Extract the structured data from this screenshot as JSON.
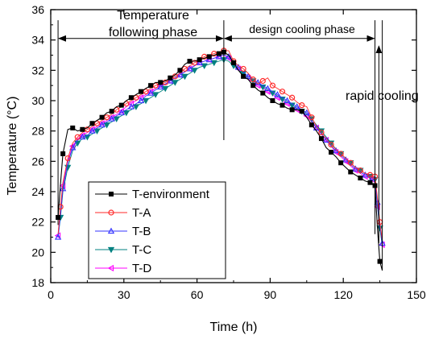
{
  "chart_data": {
    "type": "line",
    "xlabel": "Time (h)",
    "ylabel": "Temperature (°C)",
    "xlim": [
      0,
      150
    ],
    "ylim": [
      18,
      36
    ],
    "xticks": [
      "0",
      "30",
      "60",
      "90",
      "120",
      "150"
    ],
    "yticks": [
      "18",
      "20",
      "22",
      "24",
      "26",
      "28",
      "30",
      "32",
      "34",
      "36"
    ],
    "grid": false,
    "legend_position": "bottom-left",
    "annotations": {
      "phase1_line1": "Temperature",
      "phase1_line2": "following phase",
      "phase2": "design cooling phase",
      "phase3": "rapid cooling"
    },
    "phase_boundaries_x": [
      3,
      71,
      133,
      136
    ],
    "series": [
      {
        "name": "T-environment",
        "color": "#000000",
        "marker": "square",
        "x": [
          3,
          4,
          5,
          7,
          9,
          11,
          13,
          15,
          17,
          19,
          21,
          23,
          25,
          27,
          29,
          31,
          33,
          35,
          37,
          39,
          41,
          43,
          45,
          47,
          49,
          51,
          53,
          55,
          57,
          59,
          61,
          63,
          65,
          67,
          69,
          70,
          71,
          73,
          75,
          77,
          79,
          81,
          83,
          85,
          87,
          89,
          91,
          93,
          95,
          97,
          99,
          101,
          103,
          105,
          107,
          109,
          111,
          113,
          115,
          117,
          119,
          121,
          123,
          125,
          127,
          129,
          131,
          132,
          133,
          134,
          135,
          136
        ],
        "y": [
          22.3,
          24.5,
          26.5,
          28.1,
          28.2,
          28.0,
          28.1,
          28.2,
          28.5,
          28.7,
          28.9,
          29.2,
          29.3,
          29.6,
          29.7,
          30.0,
          30.2,
          30.4,
          30.6,
          30.8,
          31.0,
          31.2,
          31.2,
          31.3,
          31.5,
          31.7,
          32.0,
          32.4,
          32.6,
          32.6,
          32.7,
          32.8,
          32.9,
          33.0,
          33.1,
          33.2,
          33.2,
          33.0,
          32.5,
          32.0,
          31.6,
          31.4,
          31.0,
          30.7,
          30.5,
          30.2,
          30.0,
          29.8,
          29.7,
          29.5,
          29.4,
          29.4,
          29.3,
          28.9,
          28.4,
          28.0,
          27.5,
          26.9,
          26.6,
          26.3,
          25.9,
          25.6,
          25.3,
          25.1,
          24.9,
          24.7,
          24.6,
          24.5,
          24.4,
          21.6,
          19.4,
          18.8
        ]
      },
      {
        "name": "T-A",
        "color": "#ff2a2a",
        "marker": "circle",
        "x": [
          3,
          4,
          5,
          7,
          9,
          11,
          13,
          15,
          17,
          19,
          21,
          23,
          25,
          27,
          29,
          31,
          33,
          35,
          37,
          39,
          41,
          43,
          45,
          47,
          49,
          51,
          53,
          55,
          57,
          59,
          61,
          63,
          65,
          67,
          69,
          71,
          73,
          75,
          77,
          79,
          81,
          83,
          85,
          87,
          89,
          91,
          93,
          95,
          97,
          99,
          101,
          103,
          105,
          107,
          109,
          111,
          113,
          115,
          117,
          119,
          121,
          123,
          125,
          127,
          129,
          131,
          132,
          133,
          134,
          135,
          136
        ],
        "y": [
          21.2,
          23.0,
          24.6,
          26.2,
          27.2,
          27.6,
          27.9,
          28.1,
          28.3,
          28.5,
          28.7,
          28.9,
          29.1,
          29.4,
          29.6,
          29.8,
          30.0,
          30.2,
          30.4,
          30.6,
          30.8,
          31.0,
          31.1,
          31.2,
          31.4,
          31.6,
          31.8,
          32.1,
          32.3,
          32.5,
          32.7,
          32.9,
          33.0,
          33.1,
          33.2,
          33.3,
          33.3,
          32.6,
          32.3,
          32.1,
          31.8,
          31.4,
          31.1,
          31.3,
          31.5,
          31.0,
          30.8,
          30.6,
          30.4,
          30.2,
          29.9,
          29.7,
          29.6,
          28.9,
          28.3,
          27.9,
          27.5,
          27.1,
          26.8,
          26.5,
          26.2,
          25.9,
          25.6,
          25.4,
          25.2,
          25.1,
          25.0,
          25.0,
          23.6,
          22.0,
          20.8
        ]
      },
      {
        "name": "T-B",
        "color": "#3333ff",
        "marker": "triangle-up",
        "x": [
          3,
          4,
          5,
          7,
          9,
          11,
          13,
          15,
          17,
          19,
          21,
          23,
          25,
          27,
          29,
          31,
          33,
          35,
          37,
          39,
          41,
          43,
          45,
          47,
          49,
          51,
          53,
          55,
          57,
          59,
          61,
          63,
          65,
          67,
          69,
          71,
          73,
          75,
          77,
          79,
          81,
          83,
          85,
          87,
          89,
          91,
          93,
          95,
          97,
          99,
          101,
          103,
          105,
          107,
          109,
          111,
          113,
          115,
          117,
          119,
          121,
          123,
          125,
          127,
          129,
          131,
          132,
          133,
          134,
          135,
          136
        ],
        "y": [
          21.0,
          22.5,
          24.2,
          25.9,
          26.9,
          27.4,
          27.6,
          27.7,
          28.0,
          28.2,
          28.4,
          28.6,
          28.8,
          29.0,
          29.2,
          29.4,
          29.6,
          29.8,
          30.0,
          30.3,
          30.5,
          30.7,
          30.9,
          31.1,
          31.3,
          31.5,
          31.7,
          31.9,
          32.1,
          32.3,
          32.5,
          32.6,
          32.7,
          32.8,
          32.9,
          33.0,
          32.9,
          32.5,
          32.2,
          31.9,
          31.6,
          31.4,
          31.2,
          31.0,
          30.8,
          30.6,
          30.4,
          30.2,
          30.0,
          29.8,
          29.6,
          29.4,
          29.2,
          28.7,
          28.2,
          27.8,
          27.4,
          27.0,
          26.7,
          26.4,
          26.1,
          25.8,
          25.5,
          25.3,
          25.1,
          25.0,
          24.9,
          24.8,
          23.3,
          21.8,
          20.6
        ]
      },
      {
        "name": "T-C",
        "color": "#008080",
        "marker": "triangle-down",
        "x": [
          3,
          4,
          5,
          7,
          9,
          11,
          13,
          15,
          17,
          19,
          21,
          23,
          25,
          27,
          29,
          31,
          33,
          35,
          37,
          39,
          41,
          43,
          45,
          47,
          49,
          51,
          53,
          55,
          57,
          59,
          61,
          63,
          65,
          67,
          69,
          71,
          73,
          75,
          77,
          79,
          81,
          83,
          85,
          87,
          89,
          91,
          93,
          95,
          97,
          99,
          101,
          103,
          105,
          107,
          109,
          111,
          113,
          115,
          117,
          119,
          121,
          123,
          125,
          127,
          129,
          131,
          132,
          133,
          134,
          135,
          136
        ],
        "y": [
          21.0,
          22.3,
          24.0,
          25.6,
          26.7,
          27.2,
          27.5,
          27.6,
          27.8,
          28.0,
          28.2,
          28.4,
          28.6,
          28.8,
          29.0,
          29.2,
          29.4,
          29.6,
          29.8,
          30.0,
          30.2,
          30.4,
          30.6,
          30.8,
          31.0,
          31.2,
          31.4,
          31.6,
          31.8,
          32.0,
          32.2,
          32.3,
          32.4,
          32.5,
          32.6,
          32.7,
          32.6,
          32.3,
          32.0,
          31.8,
          31.5,
          31.3,
          31.1,
          30.9,
          30.7,
          30.5,
          30.3,
          30.1,
          29.9,
          29.7,
          29.5,
          29.3,
          29.1,
          28.8,
          28.4,
          28.0,
          27.6,
          27.2,
          26.8,
          26.5,
          26.2,
          25.9,
          25.6,
          25.4,
          25.2,
          25.0,
          24.9,
          24.8,
          23.0,
          21.6,
          20.4
        ]
      },
      {
        "name": "T-D",
        "color": "#ff00ff",
        "marker": "triangle-left",
        "x": [
          3,
          4,
          5,
          7,
          9,
          11,
          13,
          15,
          17,
          19,
          21,
          23,
          25,
          27,
          29,
          31,
          33,
          35,
          37,
          39,
          41,
          43,
          45,
          47,
          49,
          51,
          53,
          55,
          57,
          59,
          61,
          63,
          65,
          67,
          69,
          71,
          73,
          75,
          77,
          79,
          81,
          83,
          85,
          87,
          89,
          91,
          93,
          95,
          97,
          99,
          101,
          103,
          105,
          107,
          109,
          111,
          113,
          115,
          117,
          119,
          121,
          123,
          125,
          127,
          129,
          131,
          132,
          133,
          134,
          135,
          136
        ],
        "y": [
          21.1,
          22.8,
          24.4,
          26.0,
          27.0,
          27.5,
          27.7,
          27.9,
          28.1,
          28.3,
          28.5,
          28.7,
          28.9,
          29.1,
          29.3,
          29.6,
          29.8,
          30.0,
          30.2,
          30.4,
          30.6,
          30.8,
          31.0,
          31.1,
          31.3,
          31.5,
          31.7,
          31.9,
          32.1,
          32.3,
          32.5,
          32.6,
          32.7,
          32.8,
          32.9,
          33.0,
          32.8,
          32.4,
          32.1,
          31.8,
          31.5,
          31.3,
          31.0,
          30.8,
          30.6,
          30.4,
          30.2,
          30.0,
          29.8,
          29.6,
          29.4,
          29.2,
          29.0,
          28.6,
          28.2,
          27.8,
          27.4,
          27.0,
          26.6,
          26.3,
          26.0,
          25.7,
          25.4,
          25.2,
          25.0,
          24.9,
          24.8,
          24.7,
          23.0,
          21.6,
          20.5
        ]
      }
    ]
  }
}
